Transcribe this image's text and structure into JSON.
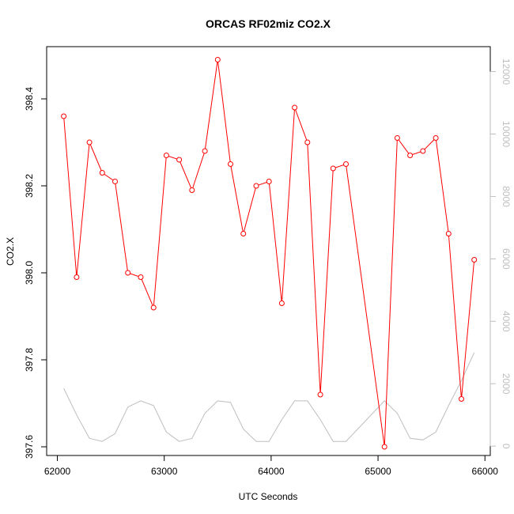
{
  "chart_data": {
    "type": "line",
    "title": "ORCAS RF02miz CO2.X",
    "xlabel": "UTC Seconds",
    "ylabel": "CO2.X",
    "xlim": [
      61900,
      66050
    ],
    "ylim": [
      397.58,
      398.52
    ],
    "x_ticks": [
      62000,
      63000,
      64000,
      65000,
      66000
    ],
    "y_ticks": [
      397.6,
      397.8,
      398.0,
      398.2,
      398.4
    ],
    "y_tick_labels": [
      "397.6",
      "397.8",
      "398.0",
      "398.2",
      "398.4"
    ],
    "right_axis": {
      "ylim": [
        -300,
        12800
      ],
      "ticks": [
        0,
        2000,
        4000,
        6000,
        8000,
        10000,
        12000
      ]
    },
    "grid": false,
    "series": [
      {
        "axis": "left",
        "color": "#ff0000",
        "marker": "open-circle",
        "x": [
          62060,
          62180,
          62300,
          62420,
          62540,
          62660,
          62780,
          62900,
          63020,
          63140,
          63260,
          63380,
          63500,
          63620,
          63740,
          63860,
          63980,
          64100,
          64220,
          64340,
          64460,
          64580,
          64700,
          65060,
          65180,
          65300,
          65420,
          65540,
          65660,
          65780,
          65900
        ],
        "y": [
          398.36,
          397.99,
          398.3,
          398.23,
          398.21,
          398.0,
          397.99,
          397.92,
          398.27,
          398.26,
          398.19,
          398.28,
          398.49,
          398.25,
          398.09,
          398.2,
          398.21,
          397.93,
          398.38,
          398.3,
          397.72,
          398.24,
          398.25,
          397.6,
          398.31,
          398.27,
          398.28,
          398.31,
          398.09,
          397.71,
          398.03
        ]
      },
      {
        "axis": "right",
        "color": "#bebebe",
        "marker": "none",
        "x": [
          62060,
          62180,
          62300,
          62420,
          62540,
          62660,
          62780,
          62900,
          63020,
          63140,
          63260,
          63380,
          63500,
          63620,
          63740,
          63860,
          63980,
          64100,
          64220,
          64340,
          64460,
          64580,
          64700,
          65060,
          65180,
          65300,
          65420,
          65540,
          65660,
          65780,
          65900
        ],
        "y": [
          1850,
          1000,
          250,
          150,
          400,
          1250,
          1450,
          1300,
          450,
          150,
          250,
          1050,
          1450,
          1400,
          550,
          150,
          150,
          850,
          1450,
          1450,
          850,
          150,
          150,
          1450,
          1050,
          250,
          200,
          450,
          1300,
          2100,
          3000
        ]
      }
    ]
  }
}
